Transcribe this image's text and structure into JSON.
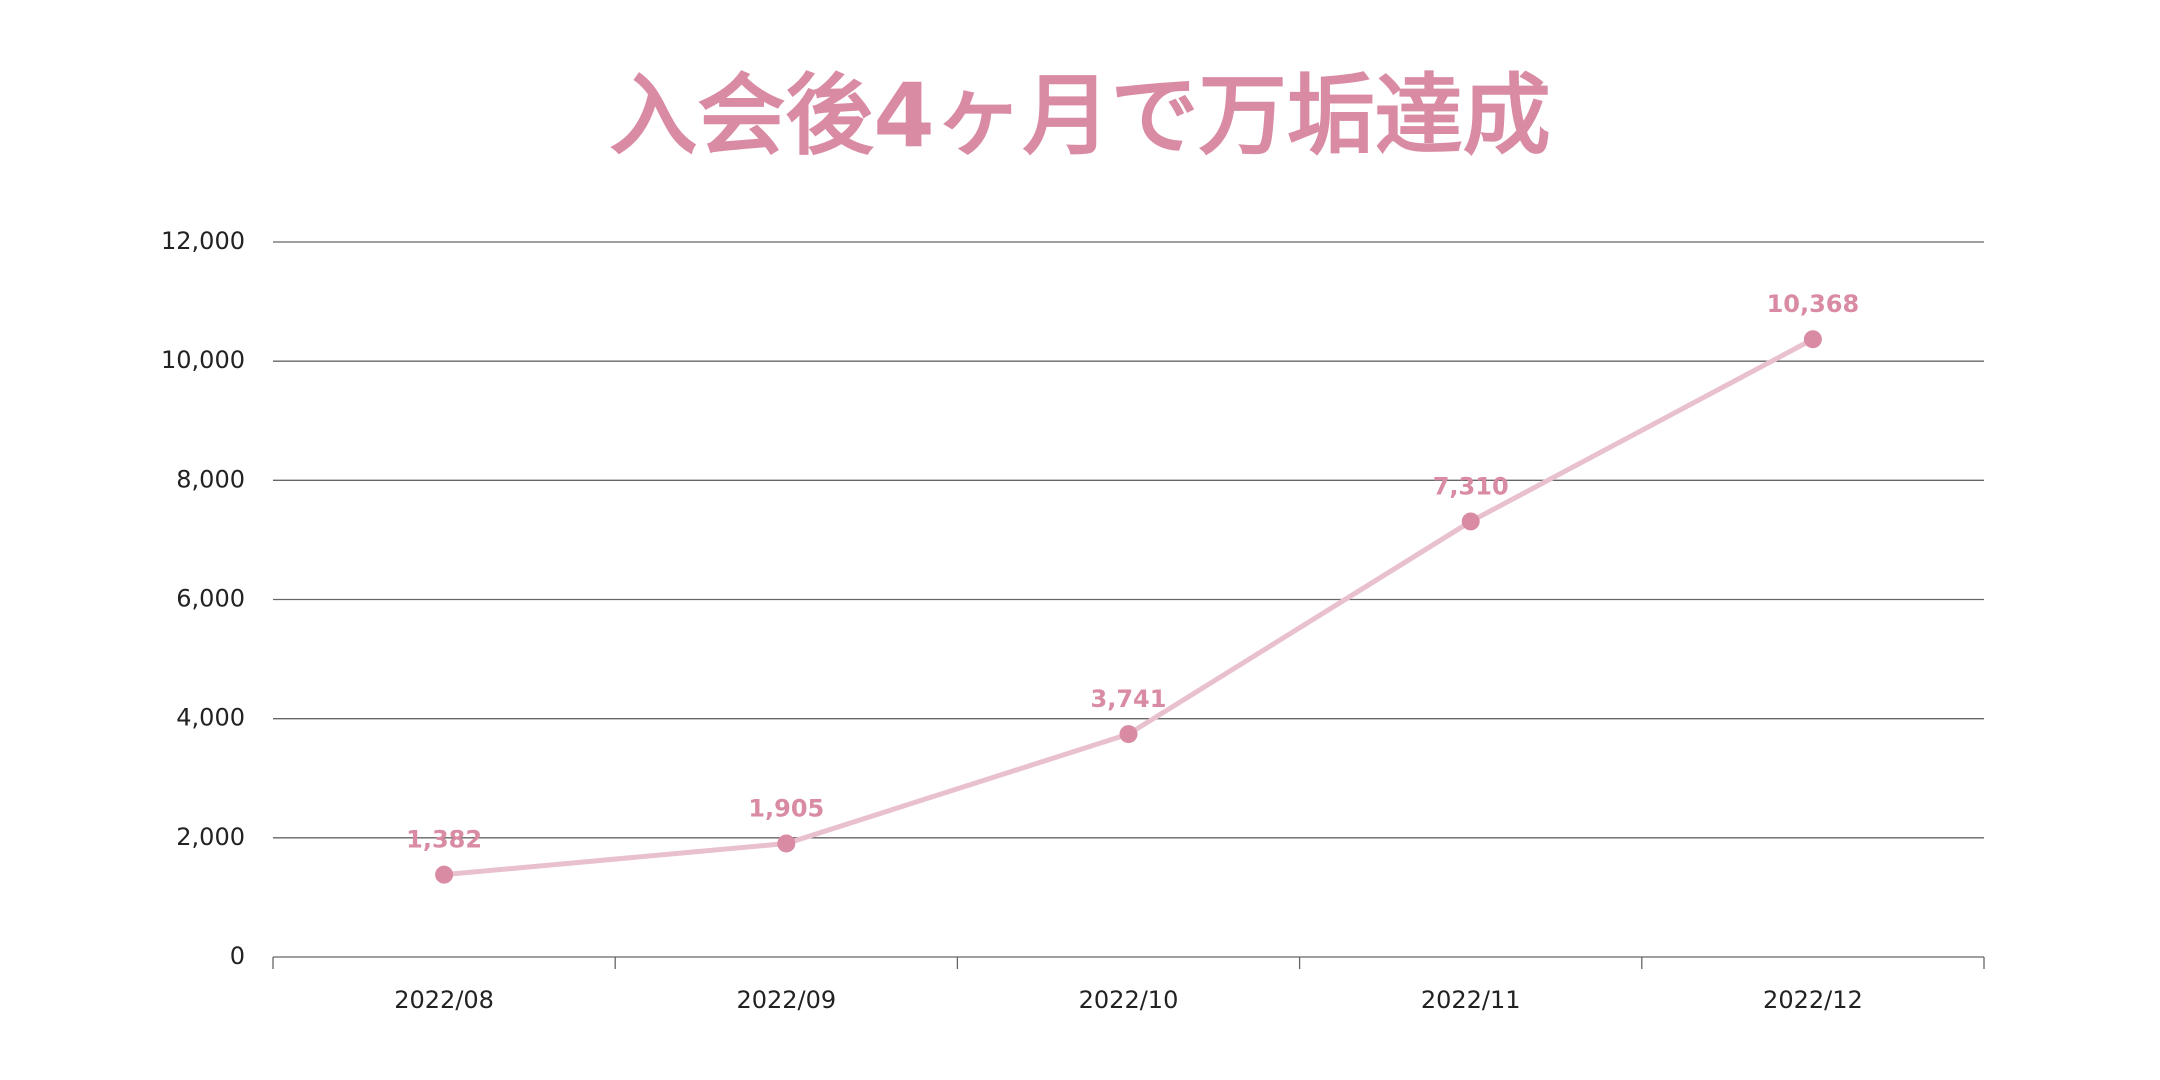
{
  "chart_data": {
    "type": "line",
    "title": "入会後4ヶ月で万垢達成",
    "categories": [
      "2022/08",
      "2022/09",
      "2022/10",
      "2022/11",
      "2022/12"
    ],
    "values": [
      1382,
      1905,
      3741,
      7310,
      10368
    ],
    "value_labels": [
      "1,382",
      "1,905",
      "3,741",
      "7,310",
      "10,368"
    ],
    "color": "#d98ba3",
    "line_color": "#e9c0cd",
    "ylim": [
      0,
      12000
    ],
    "yticks": [
      0,
      {
        "value": 2000,
        "label": "2,000"
      },
      {
        "value": 4000,
        "label": "4,000"
      },
      {
        "value": 6000,
        "label": "6,000"
      },
      {
        "value": 8000,
        "label": "8,000"
      },
      {
        "value": 10000,
        "label": "10,000"
      },
      {
        "value": 12000,
        "label": "12,000"
      }
    ],
    "grid": true
  }
}
